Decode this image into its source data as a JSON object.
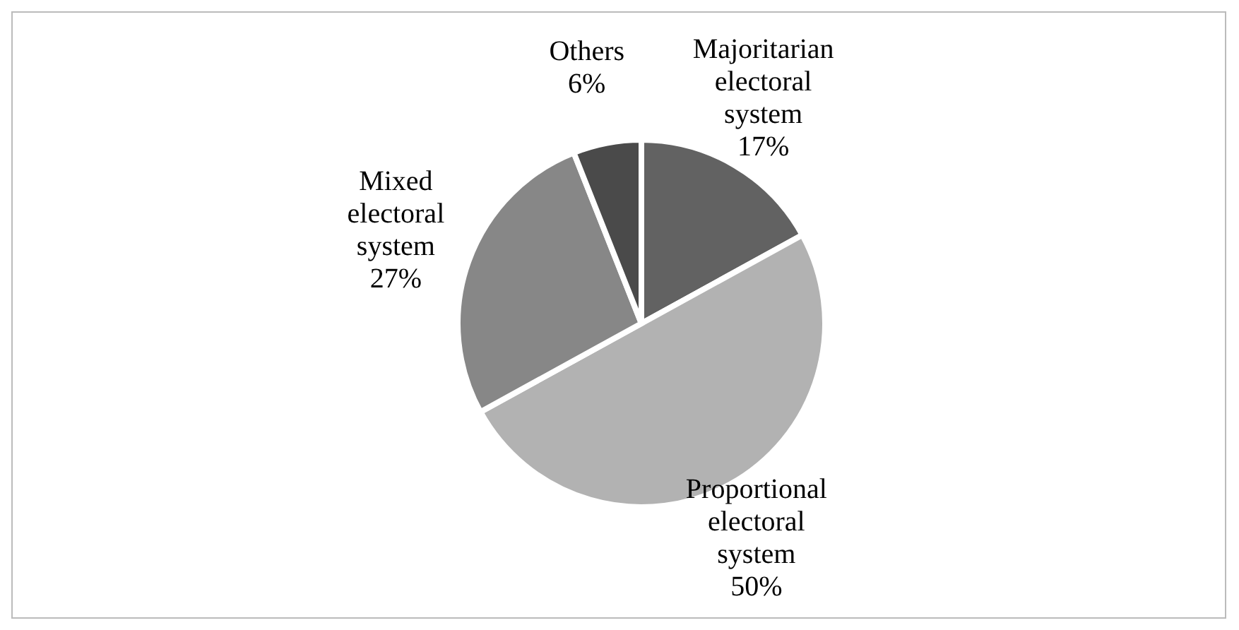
{
  "chart_data": {
    "type": "pie",
    "categories": [
      "Majoritarian electoral system",
      "Proportional electoral system",
      "Mixed electoral system",
      "Others"
    ],
    "values": [
      17,
      50,
      27,
      6
    ],
    "value_labels": [
      "17%",
      "50%",
      "27%",
      "6%"
    ],
    "colors": [
      "#626262",
      "#b2b2b2",
      "#878787",
      "#4a4a4a"
    ],
    "legend": false
  }
}
